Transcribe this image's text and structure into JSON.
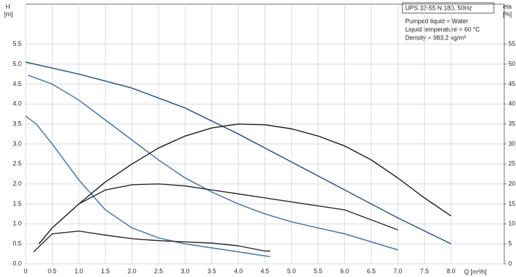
{
  "chart_data": {
    "type": "line",
    "y_label": "H",
    "y_unit": "[m]",
    "y2_label": "eta",
    "y2_unit": "[%]",
    "x_label": "Q [m³/h]",
    "info_title": "UPS 32-55 N 180, 50Hz",
    "info": [
      "Pumped liquid = Water",
      "Liquid temperature = 60 °C",
      "Density = 983.2 kg/m³"
    ],
    "xlim": [
      0,
      9
    ],
    "ylim": [
      0,
      6.5
    ],
    "y2lim": [
      0,
      65
    ],
    "grid": true,
    "xticks": [
      0,
      0.5,
      {
        "value": 1,
        "label": "1.0"
      },
      1.5,
      {
        "value": 2,
        "label": "2.0"
      },
      2.5,
      {
        "value": 3,
        "label": "3.0"
      },
      3.5,
      {
        "value": 4,
        "label": "4.0"
      },
      4.5,
      {
        "value": 5,
        "label": "5.0"
      },
      5.5,
      {
        "value": 6,
        "label": "6.0"
      },
      6.5,
      {
        "value": 7,
        "label": "7.0"
      },
      7.5,
      {
        "value": 8,
        "label": "8.0"
      }
    ],
    "yticks": [
      {
        "value": 0,
        "label": "0.0"
      },
      0.5,
      {
        "value": 1,
        "label": "1.0"
      },
      1.5,
      {
        "value": 2,
        "label": "2.0"
      },
      2.5,
      {
        "value": 3,
        "label": "3.0"
      },
      3.5,
      {
        "value": 4,
        "label": "4.0"
      },
      4.5,
      {
        "value": 5,
        "label": "5.0"
      },
      5.5
    ],
    "y2ticks": [
      0,
      5,
      10,
      15,
      20,
      25,
      30,
      35,
      40,
      45,
      50,
      55
    ],
    "series": [
      {
        "color": "#2a5a96",
        "x": [
          0,
          1,
          2,
          3,
          4,
          5,
          6,
          7,
          8
        ],
        "values": [
          5.05,
          4.75,
          4.4,
          3.9,
          3.25,
          2.55,
          1.85,
          1.15,
          0.5
        ]
      },
      {
        "color": "#4a78b0",
        "x": [
          0.05,
          0.5,
          1,
          1.5,
          2,
          2.5,
          3,
          3.5,
          4,
          4.5,
          5,
          5.5,
          6,
          6.5,
          7
        ],
        "values": [
          4.72,
          4.5,
          4.1,
          3.6,
          3.1,
          2.6,
          2.15,
          1.8,
          1.5,
          1.25,
          1.05,
          0.9,
          0.75,
          0.55,
          0.35
        ]
      },
      {
        "color": "#4a78b0",
        "x": [
          0,
          0.2,
          0.5,
          1,
          1.5,
          2,
          2.5,
          3,
          3.5,
          4,
          4.5,
          4.6
        ],
        "values": [
          3.7,
          3.5,
          3.0,
          2.1,
          1.35,
          0.9,
          0.65,
          0.5,
          0.4,
          0.3,
          0.2,
          0.18
        ]
      },
      {
        "color": "#111111",
        "axis": "y2",
        "x": [
          0.25,
          0.5,
          1,
          1.5,
          2,
          2.5,
          3,
          3.5,
          4,
          4.5,
          5,
          5.5,
          6,
          6.5,
          7,
          7.5,
          8
        ],
        "values": [
          5,
          9,
          15,
          20.5,
          25,
          29,
          32,
          34,
          35,
          34.8,
          33.8,
          32,
          29.5,
          26,
          21.5,
          16.5,
          12
        ]
      },
      {
        "color": "#222222",
        "axis": "y2",
        "x": [
          0.25,
          0.5,
          1,
          1.5,
          2,
          2.5,
          3,
          3.5,
          4,
          4.5,
          5,
          5.5,
          6,
          6.5,
          7
        ],
        "values": [
          5,
          9,
          15,
          18.5,
          19.8,
          20,
          19.5,
          18.5,
          17.5,
          16.5,
          15.5,
          14.5,
          13.5,
          11,
          8.5
        ]
      },
      {
        "color": "#222222",
        "axis": "y2",
        "x": [
          0.15,
          0.5,
          1,
          1.5,
          2,
          2.5,
          3,
          3.5,
          4,
          4.5,
          4.6
        ],
        "values": [
          3,
          7.5,
          8.2,
          7.2,
          6.3,
          5.8,
          5.5,
          5.2,
          4.5,
          3.2,
          3.2
        ]
      }
    ]
  }
}
